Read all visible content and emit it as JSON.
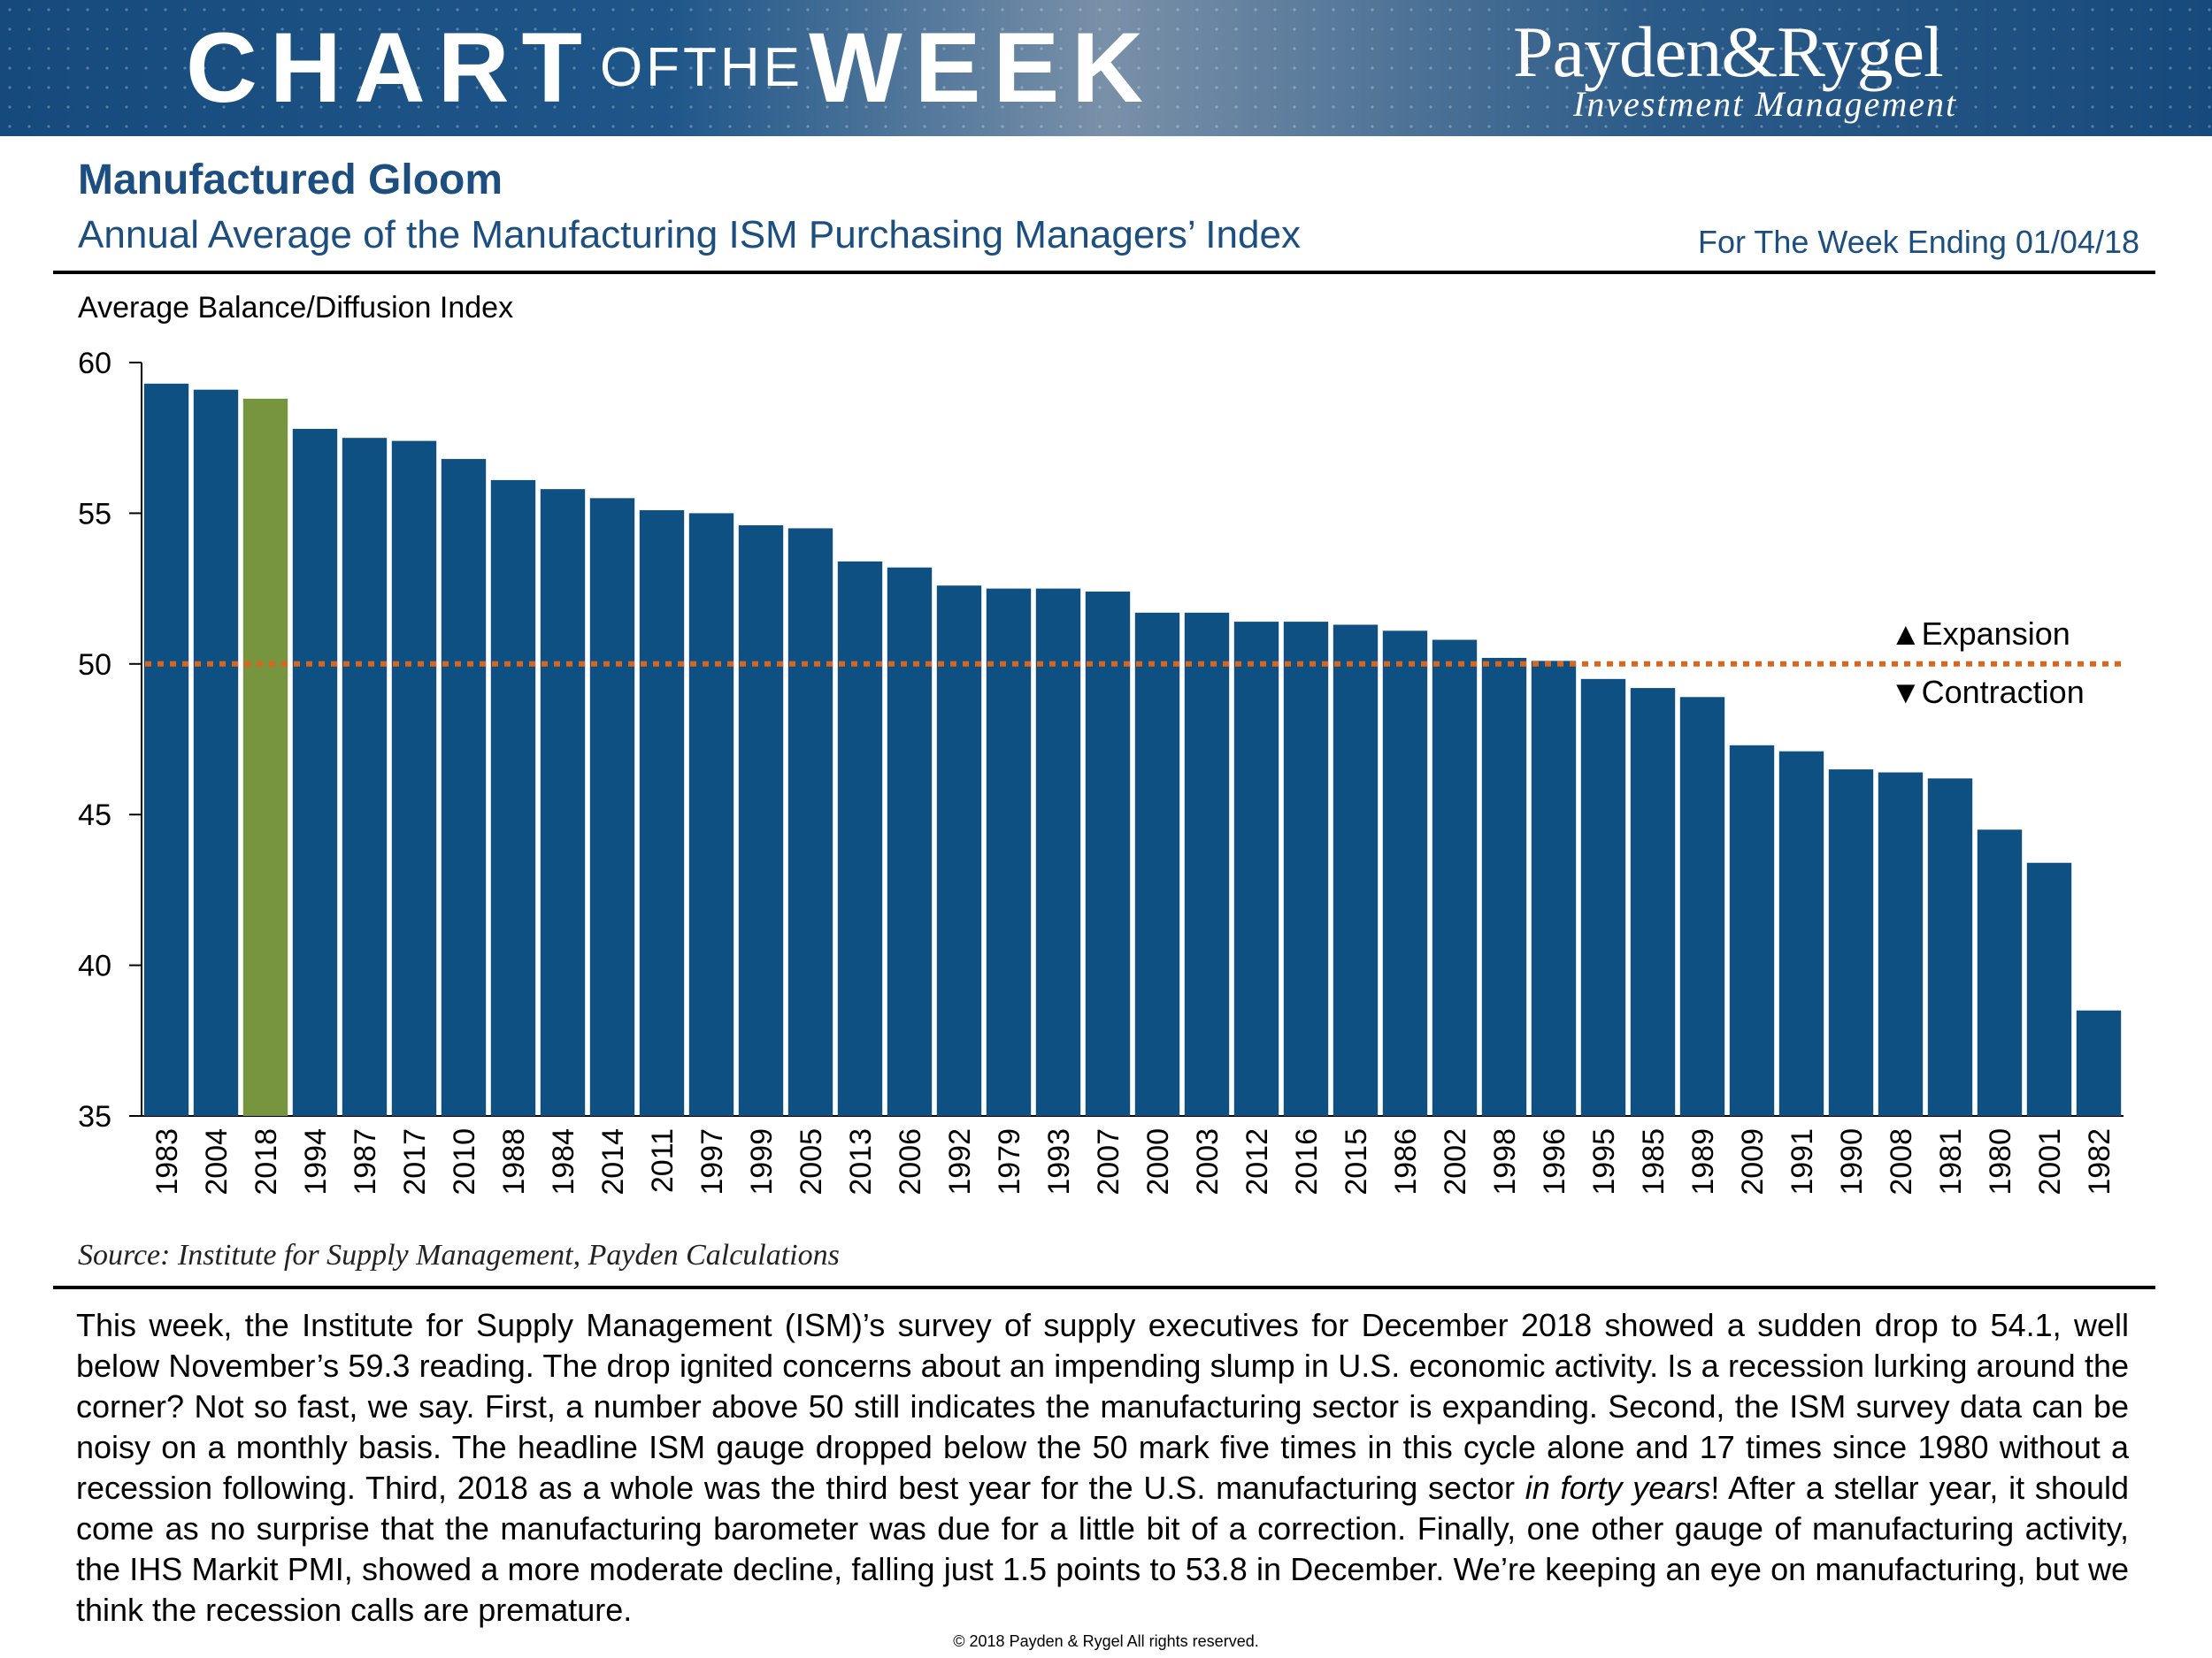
{
  "header": {
    "cotw_chart": "CHART",
    "cotw_of_the": "OFTHE",
    "cotw_week": "WEEK",
    "brand_name": "Payden&Rygel",
    "brand_tagline": "Investment Management"
  },
  "title": "Manufactured Gloom",
  "subtitle": "Annual Average of the Manufacturing ISM Purchasing Managers’ Index",
  "week_ending": "For The Week Ending 01/04/18",
  "source": "Source: Institute for Supply Management, Payden Calculations",
  "body_paragraph": "This week, the Institute for Supply Management (ISM)’s survey of supply executives for December 2018 showed a sudden drop to 54.1, well below November’s 59.3 reading. The drop ignited concerns about an impending slump in U.S. economic activity. Is a recession lurking around the corner? Not so fast, we say. First, a number above 50 still indicates the manufacturing sector is expanding. Second, the ISM survey data can be noisy on a monthly basis. The headline ISM gauge dropped below the 50 mark five times in this cycle alone and 17 times since 1980 without a recession following. Third, 2018 as a whole was the third best year for the U.S. manufacturing sector",
  "body_italic": "in forty years",
  "body_rest": "! After a stellar year, it should come as no surprise that the manufacturing barometer was due for a little bit of a correction. Finally, one other gauge of manufacturing activity, the IHS Markit PMI, showed a more moderate decline, falling just 1.5 points to 53.8 in December. We’re keeping an eye on manufacturing, but we think the recession calls are premature.",
  "footer": "© 2018 Payden & Rygel All rights reserved.",
  "colors": {
    "bar": "#0f5083",
    "highlight": "#77953f",
    "threshold": "#d9661f",
    "title": "#1c4e80"
  },
  "chart_data": {
    "type": "bar",
    "title": "Annual Average of the Manufacturing ISM Purchasing Managers’ Index",
    "ylabel": "Average Balance/Diffusion Index",
    "xlabel": "",
    "ylim": [
      35,
      60
    ],
    "yticks": [
      35,
      40,
      45,
      50,
      55,
      60
    ],
    "threshold": 50,
    "highlight_category": "2018",
    "annotations": {
      "expansion": "▲Expansion",
      "contraction": "▼Contraction"
    },
    "categories": [
      "1983",
      "2004",
      "2018",
      "1994",
      "1987",
      "2017",
      "2010",
      "1988",
      "1984",
      "2014",
      "2011",
      "1997",
      "1999",
      "2005",
      "2013",
      "2006",
      "1992",
      "1979",
      "1993",
      "2007",
      "2000",
      "2003",
      "2012",
      "2016",
      "2015",
      "1986",
      "2002",
      "1998",
      "1996",
      "1995",
      "1985",
      "1989",
      "2009",
      "1991",
      "1990",
      "2008",
      "1981",
      "1980",
      "2001",
      "1982"
    ],
    "values": [
      59.3,
      59.1,
      58.8,
      57.8,
      57.5,
      57.4,
      56.8,
      56.1,
      55.8,
      55.5,
      55.1,
      55.0,
      54.6,
      54.5,
      53.4,
      53.2,
      52.6,
      52.5,
      52.5,
      52.4,
      51.7,
      51.7,
      51.4,
      51.4,
      51.3,
      51.1,
      50.8,
      50.2,
      50.1,
      49.5,
      49.2,
      48.9,
      47.3,
      47.1,
      46.5,
      46.4,
      46.2,
      44.5,
      43.4,
      38.5
    ]
  }
}
